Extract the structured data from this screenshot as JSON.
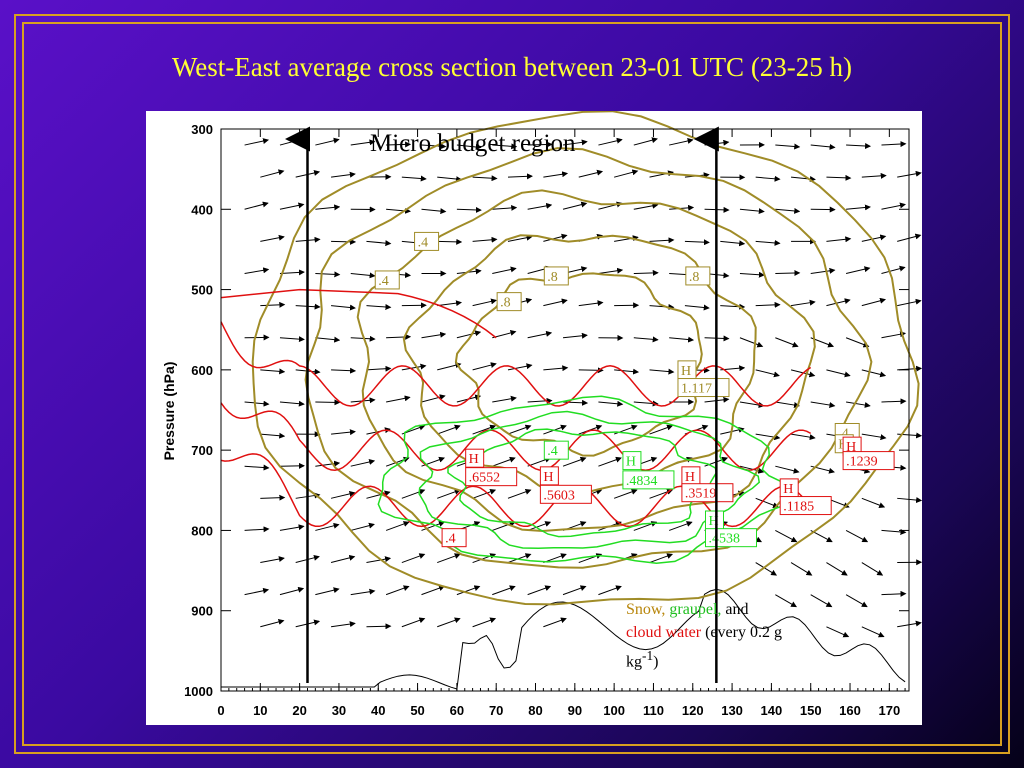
{
  "slide": {
    "title": "West-East average cross section between 23-01 UTC (23-25 h)"
  },
  "figure": {
    "overlay_label": "Micro budget region",
    "legend": {
      "snow": "Snow,",
      "graupel": "graupel,",
      "and": "and",
      "cloud_water": "cloud water",
      "interval_pre": "(every 0.2 g",
      "interval_unit": "kg",
      "interval_exp": "-1",
      "interval_post": ")"
    }
  },
  "chart_data": {
    "type": "contour",
    "ylabel": "Pressure (hPa)",
    "y_reversed": true,
    "xlim": [
      0,
      175
    ],
    "ylim": [
      1000,
      300
    ],
    "x_ticks": [
      "0",
      "10",
      "20",
      "30",
      "40",
      "50",
      "60",
      "70",
      "80",
      "90",
      "100",
      "110",
      "120",
      "130",
      "140",
      "150",
      "160",
      "170"
    ],
    "y_ticks": [
      "300",
      "400",
      "500",
      "600",
      "700",
      "800",
      "900",
      "1000"
    ],
    "budget_region_x": [
      22,
      126
    ],
    "contour_labels": {
      "snow": [
        ".4",
        ".4",
        ".8",
        ".8",
        ".8",
        "H",
        "1.117",
        ".4",
        "H"
      ],
      "graupel": [
        ".4",
        "H",
        ".4834",
        "H",
        ".4538"
      ],
      "cloud_water": [
        "H",
        ".6552",
        "H",
        ".5603",
        "H",
        ".3519",
        "H",
        ".1185",
        ".4",
        "H",
        ".1239"
      ]
    }
  },
  "colors": {
    "snow": "#a08c28",
    "graupel": "#22dd22",
    "cloud_water": "#e01010",
    "title": "#ffff33",
    "frame": "#d8a020"
  }
}
